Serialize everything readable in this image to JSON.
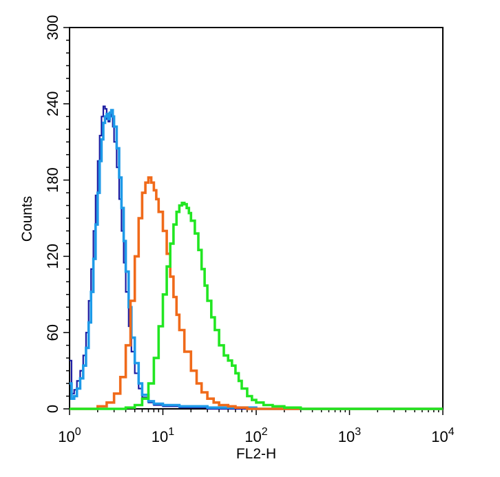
{
  "chart_data": {
    "type": "line",
    "title": "",
    "xlabel": "FL2-H",
    "ylabel": "Counts",
    "x_scale": "log",
    "xlim": [
      1,
      10000
    ],
    "ylim": [
      0,
      300
    ],
    "grid": false,
    "x_ticks": [
      {
        "value": 1,
        "base": "10",
        "exp": "0"
      },
      {
        "value": 10,
        "base": "10",
        "exp": "1"
      },
      {
        "value": 100,
        "base": "10",
        "exp": "2"
      },
      {
        "value": 1000,
        "base": "10",
        "exp": "3"
      },
      {
        "value": 10000,
        "base": "10",
        "exp": "4"
      }
    ],
    "y_ticks": [
      {
        "value": 0,
        "label": "0"
      },
      {
        "value": 60,
        "label": "60"
      },
      {
        "value": 120,
        "label": "120"
      },
      {
        "value": 180,
        "label": "180"
      },
      {
        "value": 240,
        "label": "240"
      },
      {
        "value": 300,
        "label": "300"
      }
    ],
    "series": [
      {
        "color": "#1a1aa0",
        "x": [
          1.0,
          1.05,
          1.12,
          1.2,
          1.3,
          1.4,
          1.5,
          1.6,
          1.7,
          1.8,
          1.9,
          2.0,
          2.1,
          2.2,
          2.3,
          2.4,
          2.5,
          2.6,
          2.7,
          2.8,
          2.9,
          3.0,
          3.2,
          3.4,
          3.6,
          3.8,
          4.0,
          4.3,
          4.6,
          5.0,
          5.5,
          6.0,
          7.0,
          8.0,
          10,
          15,
          30,
          100,
          1000,
          10000
        ],
        "y": [
          38,
          12,
          15,
          22,
          30,
          42,
          60,
          85,
          110,
          140,
          168,
          195,
          215,
          230,
          238,
          236,
          228,
          226,
          232,
          230,
          222,
          210,
          190,
          165,
          140,
          115,
          92,
          65,
          45,
          28,
          16,
          9,
          5,
          3,
          2,
          1,
          0,
          0,
          0,
          0
        ]
      },
      {
        "color": "#1e9ae8",
        "x": [
          1.0,
          1.05,
          1.12,
          1.2,
          1.3,
          1.4,
          1.5,
          1.6,
          1.7,
          1.8,
          1.9,
          2.0,
          2.1,
          2.2,
          2.3,
          2.4,
          2.5,
          2.6,
          2.7,
          2.8,
          2.9,
          3.0,
          3.2,
          3.4,
          3.6,
          3.8,
          4.0,
          4.3,
          4.6,
          5.0,
          5.5,
          6.0,
          7.0,
          8.0,
          10,
          15,
          30,
          100,
          1000,
          10000
        ],
        "y": [
          20,
          8,
          10,
          16,
          24,
          34,
          48,
          68,
          92,
          118,
          145,
          170,
          195,
          212,
          225,
          230,
          232,
          228,
          233,
          235,
          230,
          222,
          205,
          182,
          158,
          132,
          108,
          80,
          56,
          36,
          20,
          11,
          6,
          4,
          3,
          2,
          1,
          0,
          0,
          0
        ]
      },
      {
        "color": "#f06a1a",
        "x": [
          1.0,
          1.5,
          2.0,
          2.5,
          3.0,
          3.5,
          4.0,
          4.5,
          5.0,
          5.5,
          6.0,
          6.5,
          7.0,
          7.5,
          8.0,
          8.5,
          9.0,
          10,
          11,
          12,
          13,
          14,
          15,
          17,
          20,
          23,
          26,
          30,
          35,
          40,
          50,
          60,
          80,
          100,
          200,
          1000,
          10000
        ],
        "y": [
          0,
          0,
          2,
          5,
          12,
          25,
          50,
          85,
          120,
          150,
          170,
          178,
          182,
          178,
          172,
          165,
          155,
          140,
          122,
          104,
          88,
          74,
          62,
          45,
          30,
          20,
          13,
          8,
          5,
          3,
          2,
          1,
          0,
          0,
          0,
          0,
          0
        ]
      },
      {
        "color": "#22e622",
        "x": [
          1.0,
          3.0,
          4.0,
          5.0,
          6.0,
          7.0,
          8.0,
          9.0,
          10,
          11,
          12,
          13,
          14,
          15,
          16,
          17,
          18,
          19,
          20,
          22,
          24,
          26,
          28,
          30,
          33,
          36,
          40,
          45,
          50,
          55,
          60,
          65,
          70,
          80,
          90,
          100,
          120,
          150,
          200,
          250,
          300,
          500,
          1000,
          10000
        ],
        "y": [
          0,
          0,
          1,
          3,
          8,
          20,
          40,
          65,
          90,
          112,
          130,
          145,
          155,
          160,
          162,
          161,
          158,
          154,
          148,
          138,
          125,
          110,
          97,
          85,
          72,
          62,
          50,
          42,
          38,
          34,
          28,
          22,
          16,
          10,
          7,
          5,
          3,
          2,
          1,
          1,
          0,
          0,
          0,
          0
        ]
      }
    ]
  }
}
